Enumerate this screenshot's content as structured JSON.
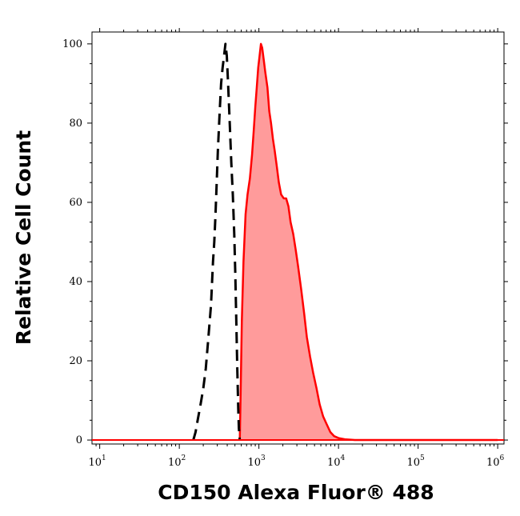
{
  "chart_data": {
    "type": "area",
    "title": "",
    "xlabel": "CD150 Alexa Fluor® 488",
    "ylabel": "Relative Cell Count",
    "x_scale": "log",
    "xlim": [
      8,
      1200000
    ],
    "ylim": [
      -1,
      103
    ],
    "x_ticks": [
      {
        "base": "10",
        "exp": "1"
      },
      {
        "base": "10",
        "exp": "2"
      },
      {
        "base": "10",
        "exp": "3"
      },
      {
        "base": "10",
        "exp": "4"
      },
      {
        "base": "10",
        "exp": "5"
      },
      {
        "base": "10",
        "exp": "6"
      }
    ],
    "y_ticks": [
      "0",
      "20",
      "40",
      "60",
      "80",
      "100"
    ],
    "grid": false,
    "series": [
      {
        "style": "dashed",
        "color": "#000000",
        "fill": "none",
        "points": [
          [
            150,
            0
          ],
          [
            160,
            2
          ],
          [
            170,
            5
          ],
          [
            185,
            9
          ],
          [
            200,
            13
          ],
          [
            215,
            18
          ],
          [
            230,
            25
          ],
          [
            250,
            34
          ],
          [
            265,
            45
          ],
          [
            275,
            50
          ],
          [
            285,
            57
          ],
          [
            295,
            65
          ],
          [
            305,
            73
          ],
          [
            320,
            82
          ],
          [
            335,
            90
          ],
          [
            350,
            94
          ],
          [
            360,
            96
          ],
          [
            370,
            98
          ],
          [
            380,
            100
          ],
          [
            395,
            97
          ],
          [
            410,
            90
          ],
          [
            430,
            80
          ],
          [
            450,
            70
          ],
          [
            470,
            62
          ],
          [
            490,
            52
          ],
          [
            505,
            42
          ],
          [
            520,
            30
          ],
          [
            535,
            18
          ],
          [
            550,
            8
          ],
          [
            560,
            3
          ],
          [
            575,
            0
          ]
        ]
      },
      {
        "style": "solid",
        "color": "#ff0000",
        "fill": "#ff9b9b",
        "points": [
          [
            575,
            0
          ],
          [
            590,
            12
          ],
          [
            610,
            30
          ],
          [
            640,
            45
          ],
          [
            680,
            57
          ],
          [
            720,
            62
          ],
          [
            770,
            66
          ],
          [
            820,
            72
          ],
          [
            860,
            78
          ],
          [
            900,
            84
          ],
          [
            940,
            89
          ],
          [
            980,
            94
          ],
          [
            1020,
            97
          ],
          [
            1060,
            100
          ],
          [
            1100,
            99
          ],
          [
            1150,
            96
          ],
          [
            1200,
            93
          ],
          [
            1280,
            89
          ],
          [
            1350,
            83
          ],
          [
            1420,
            80
          ],
          [
            1500,
            76
          ],
          [
            1580,
            73
          ],
          [
            1680,
            69
          ],
          [
            1780,
            65
          ],
          [
            1900,
            62
          ],
          [
            2050,
            61
          ],
          [
            2200,
            61
          ],
          [
            2350,
            59
          ],
          [
            2500,
            55
          ],
          [
            2700,
            52
          ],
          [
            2900,
            48
          ],
          [
            3100,
            44
          ],
          [
            3400,
            38
          ],
          [
            3700,
            32
          ],
          [
            4000,
            26
          ],
          [
            4400,
            21
          ],
          [
            4800,
            17
          ],
          [
            5300,
            13
          ],
          [
            5800,
            9
          ],
          [
            6400,
            6
          ],
          [
            7100,
            4
          ],
          [
            7900,
            2
          ],
          [
            8800,
            1
          ],
          [
            10000,
            0.5
          ],
          [
            12000,
            0.2
          ],
          [
            16000,
            0
          ],
          [
            40000,
            0
          ],
          [
            100000,
            0
          ],
          [
            1000000,
            0
          ]
        ]
      }
    ]
  }
}
